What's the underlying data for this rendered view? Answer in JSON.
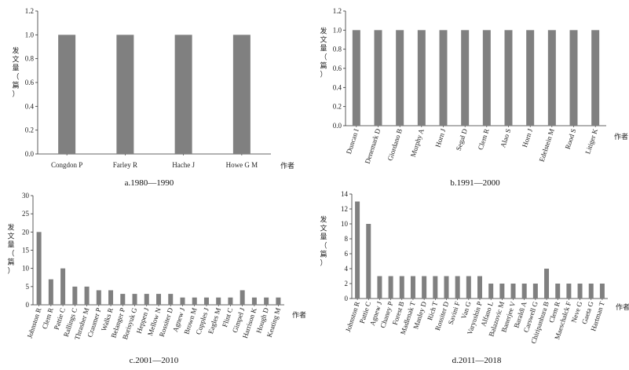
{
  "figure": {
    "chart_data": [
      {
        "type": "bar",
        "caption": "a.1980—1990",
        "ylabel": "发文量（篇）",
        "xlabel": "作者",
        "ylim": [
          0,
          1.2
        ],
        "yticks": [
          "0.0",
          "0.2",
          "0.4",
          "0.6",
          "0.8",
          "1.0",
          "1.2"
        ],
        "categories": [
          "Congdon P",
          "Farley R",
          "Hache J",
          "Howe G M"
        ],
        "values": [
          1,
          1,
          1,
          1
        ],
        "rotate_labels": false
      },
      {
        "type": "bar",
        "caption": "b.1991—2000",
        "ylabel": "发文量（篇）",
        "xlabel": "作者",
        "ylim": [
          0,
          1.2
        ],
        "yticks": [
          "0.0",
          "0.2",
          "0.4",
          "0.6",
          "0.8",
          "1.0",
          "1.2"
        ],
        "categories": [
          "Duncan I",
          "Denemark D",
          "Giordano B",
          "Murphy A",
          "Horn J",
          "Segal D",
          "Clem R",
          "Alao S",
          "Horn J",
          "Edelstein M",
          "Rood S",
          "Litiger K"
        ],
        "values": [
          1,
          1,
          1,
          1,
          1,
          1,
          1,
          1,
          1,
          1,
          1,
          1
        ],
        "rotate_labels": true
      },
      {
        "type": "bar",
        "caption": "c.2001—2010",
        "ylabel": "发文量（篇）",
        "xlabel": "作者",
        "ylim": [
          0,
          30
        ],
        "yticks": [
          "0",
          "5",
          "10",
          "15",
          "20",
          "25",
          "30"
        ],
        "categories": [
          "Johnston R",
          "Clem R",
          "Pattie C",
          "Rallings C",
          "Thrasher M",
          "Craumer P",
          "Walks R",
          "Belanger P",
          "Borisyuk G",
          "Heppen J",
          "Mellow N",
          "Rossiter D",
          "Agnew J",
          "Brown M",
          "Cupples J",
          "Eagles M",
          "Flint C",
          "Gimpel J",
          "Harrison K",
          "Hough D",
          "Keating M"
        ],
        "values": [
          20,
          7,
          10,
          5,
          5,
          4,
          4,
          3,
          3,
          3,
          3,
          3,
          2,
          2,
          2,
          2,
          2,
          4,
          2,
          2,
          2
        ],
        "rotate_labels": true
      },
      {
        "type": "bar",
        "caption": "d.2011—2018",
        "ylabel": "发文量（篇）",
        "xlabel": "作者",
        "ylim": [
          0,
          14
        ],
        "yticks": [
          "0",
          "2",
          "4",
          "6",
          "8",
          "10",
          "12",
          "14"
        ],
        "categories": [
          "Johnston R",
          "Pattie C",
          "Agnew J",
          "Chaney P",
          "Forest B",
          "Madlenak T",
          "Manley D",
          "Rich T",
          "Rossiter D",
          "Savini F",
          "Van G",
          "Varyushin P",
          "Alfano L",
          "Balazovic M",
          "Banerjee V",
          "Baraldi A",
          "Carswell G",
          "Chiripanhura B",
          "Clem R",
          "Maeschalck F",
          "Neve G",
          "Gaeta G",
          "Hartman T"
        ],
        "values": [
          13,
          10,
          3,
          3,
          3,
          3,
          3,
          3,
          3,
          3,
          3,
          3,
          2,
          2,
          2,
          2,
          2,
          4,
          2,
          2,
          2,
          2,
          2
        ],
        "rotate_labels": true
      }
    ]
  }
}
